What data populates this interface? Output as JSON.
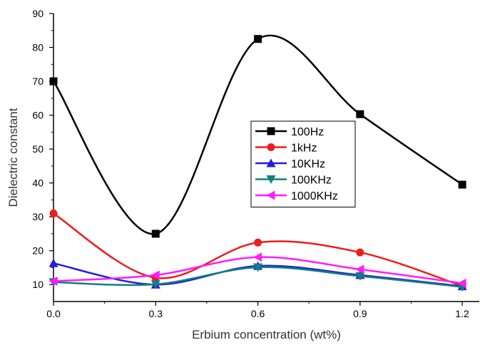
{
  "chart_data": {
    "type": "line",
    "title": "",
    "xlabel": "Erbium concentration (wt%)",
    "ylabel": "Dielectric constant",
    "x": [
      0.0,
      0.3,
      0.6,
      0.9,
      1.2
    ],
    "x_ticks": [
      "0.0",
      "0.3",
      "0.6",
      "0.9",
      "1.2"
    ],
    "y_ticks": [
      "10",
      "20",
      "30",
      "40",
      "50",
      "60",
      "70",
      "80",
      "90"
    ],
    "xlim": [
      0.0,
      1.25
    ],
    "ylim": [
      5,
      90
    ],
    "grid": false,
    "legend_position": "center-right",
    "series": [
      {
        "name": "100Hz",
        "color": "#000000",
        "marker": "square",
        "values": [
          70.0,
          25.0,
          82.5,
          60.3,
          39.5
        ]
      },
      {
        "name": "1kHz",
        "color": "#ee1c1c",
        "marker": "circle",
        "values": [
          31.0,
          12.0,
          22.4,
          19.5,
          9.6
        ]
      },
      {
        "name": "10KHz",
        "color": "#1f1fdc",
        "marker": "triangle-up",
        "values": [
          16.3,
          10.0,
          15.5,
          12.8,
          9.5
        ]
      },
      {
        "name": "100KHz",
        "color": "#108080",
        "marker": "triangle-down",
        "values": [
          10.7,
          10.1,
          15.1,
          12.5,
          9.3
        ]
      },
      {
        "name": "1000KHz",
        "color": "#ff1cff",
        "marker": "triangle-left",
        "values": [
          11.0,
          12.8,
          18.1,
          14.5,
          10.4
        ]
      }
    ]
  }
}
